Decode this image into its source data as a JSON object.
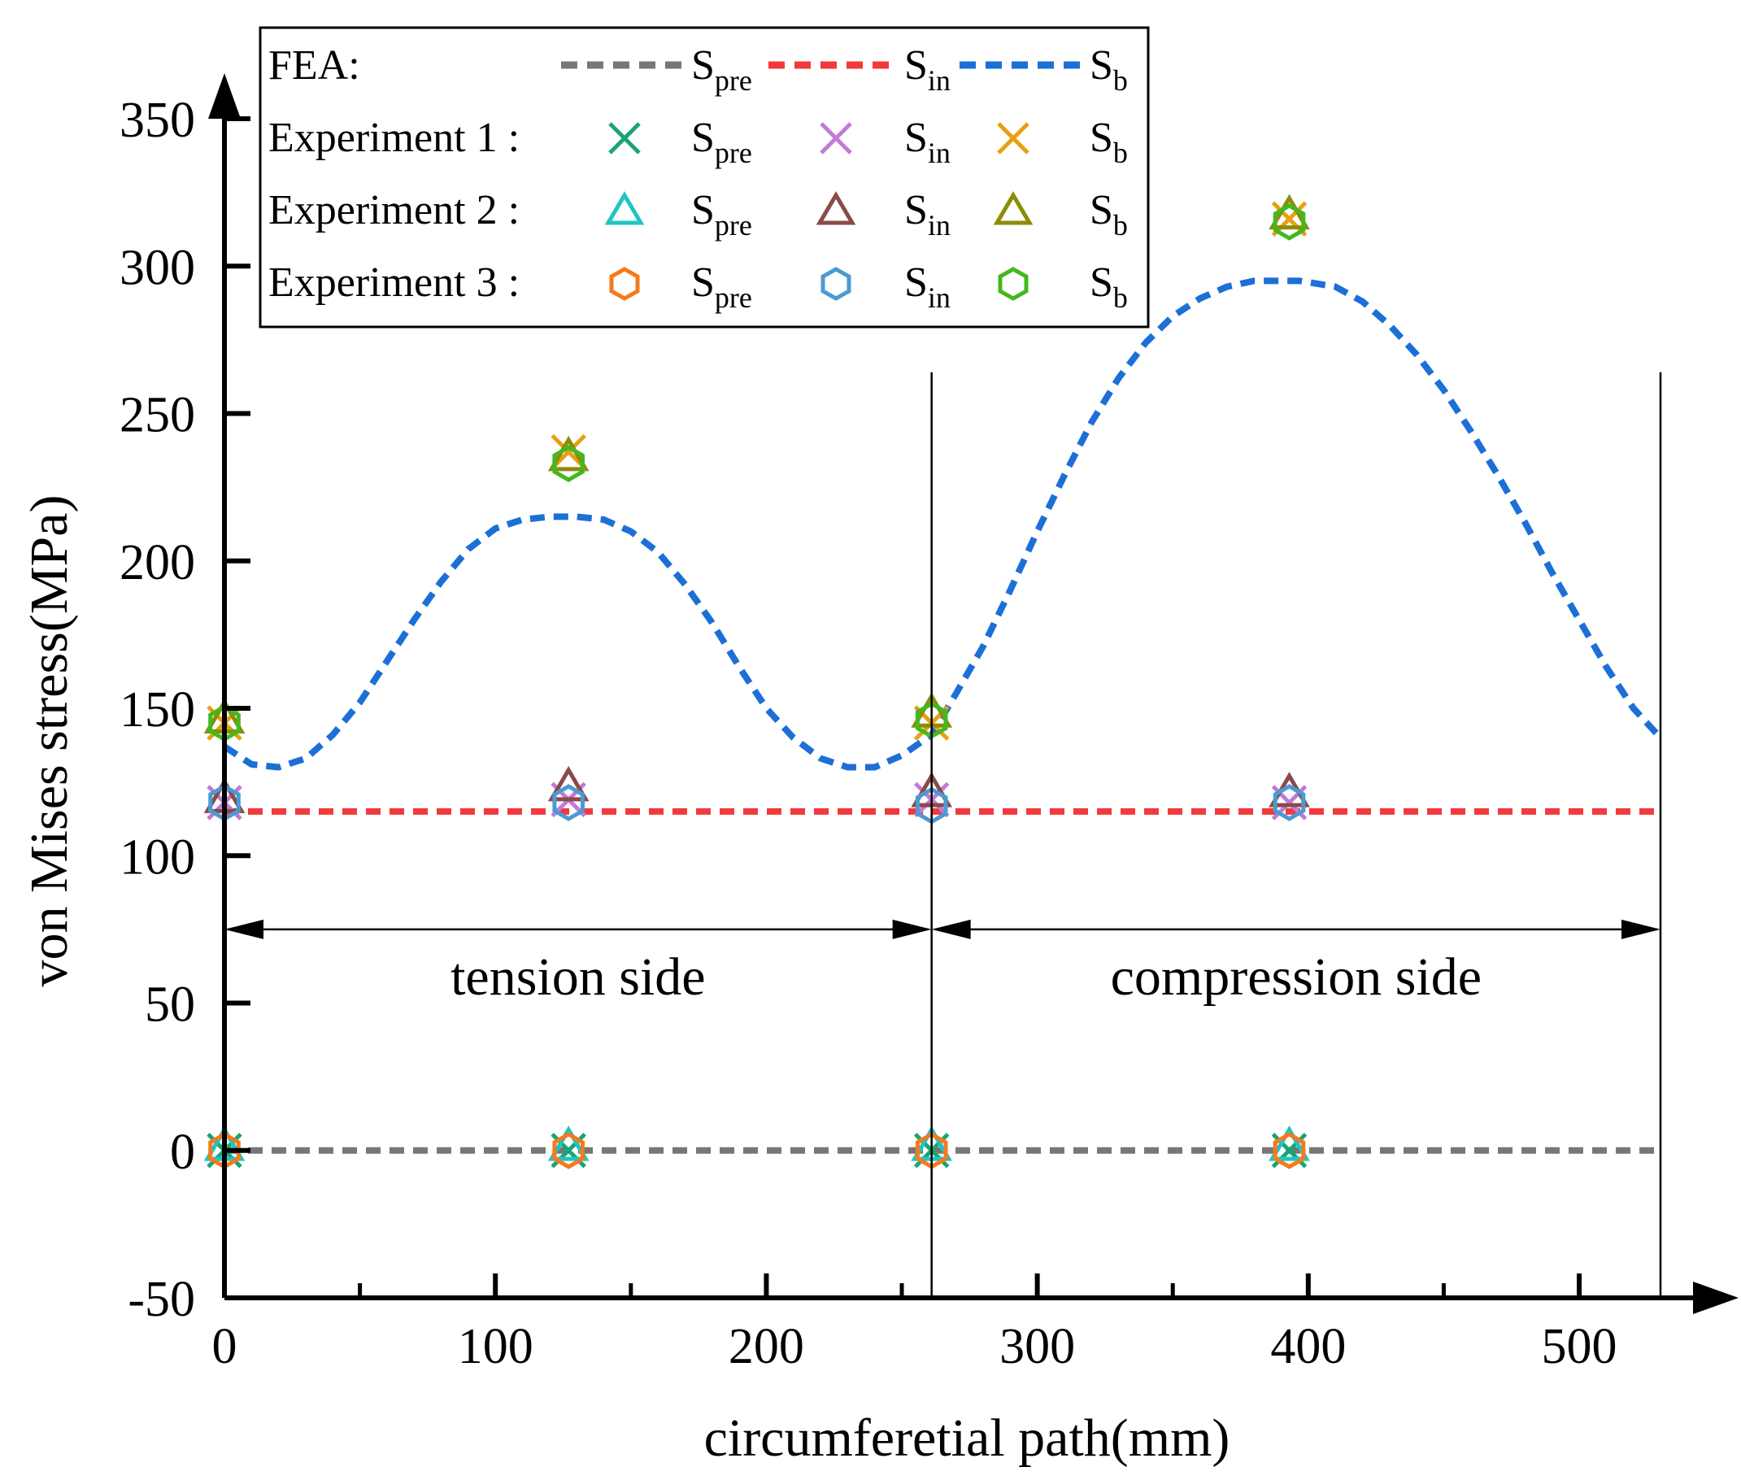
{
  "chart_data": {
    "type": "line",
    "xlabel": "circumferetial path(mm)",
    "ylabel": "von Mises stress(MPa)",
    "xlim": [
      0,
      530
    ],
    "ylim": [
      -50,
      350
    ],
    "xticks": [
      0,
      100,
      200,
      300,
      400,
      500
    ],
    "yticks": [
      -50,
      0,
      50,
      100,
      150,
      200,
      250,
      300,
      350
    ],
    "regions": [
      {
        "label": "tension side",
        "x_start": 0,
        "x_end": 261
      },
      {
        "label": "compression side",
        "x_start": 261,
        "x_end": 530
      }
    ],
    "region_boundaries": [
      261,
      530
    ],
    "region_arrow_y": 75,
    "fea_series": [
      {
        "name": "S_pre",
        "color": "#777777",
        "x": [
          0,
          530
        ],
        "y": [
          0,
          0
        ]
      },
      {
        "name": "S_in",
        "color": "#f2393c",
        "x": [
          0,
          530
        ],
        "y": [
          115,
          115
        ]
      },
      {
        "name": "S_b",
        "color": "#1c6fd6",
        "x": [
          0,
          10,
          20,
          30,
          40,
          50,
          60,
          70,
          80,
          90,
          100,
          110,
          120,
          130,
          140,
          150,
          160,
          170,
          180,
          190,
          200,
          210,
          220,
          230,
          240,
          250,
          261,
          270,
          280,
          290,
          300,
          310,
          320,
          330,
          340,
          350,
          360,
          370,
          380,
          390,
          397,
          410,
          420,
          430,
          440,
          450,
          460,
          470,
          480,
          490,
          500,
          510,
          520,
          530
        ],
        "y": [
          137,
          131,
          130,
          133,
          141,
          152,
          166,
          180,
          193,
          204,
          211,
          214,
          215,
          215,
          214,
          210,
          203,
          192,
          179,
          164,
          150,
          140,
          133,
          130,
          130,
          134,
          141,
          155,
          171,
          190,
          210,
          229,
          247,
          262,
          274,
          283,
          289,
          293,
          295,
          295,
          295,
          293,
          288,
          280,
          270,
          258,
          244,
          229,
          213,
          196,
          180,
          164,
          150,
          140
        ]
      }
    ],
    "experiments": [
      {
        "name": "Experiment 1",
        "marker": "x",
        "points": [
          {
            "quantity": "S_pre",
            "color": "#17a673",
            "x": [
              0,
              127,
              261,
              393
            ],
            "y": [
              0,
              0,
              0,
              0
            ]
          },
          {
            "quantity": "S_in",
            "color": "#c27ad9",
            "x": [
              0,
              127,
              261,
              393
            ],
            "y": [
              118,
              119,
              119,
              118
            ]
          },
          {
            "quantity": "S_b",
            "color": "#e6a012",
            "x": [
              0,
              127,
              261,
              393
            ],
            "y": [
              145,
              237,
              145,
              316
            ]
          }
        ]
      },
      {
        "name": "Experiment 2",
        "marker": "triangle",
        "points": [
          {
            "quantity": "S_pre",
            "color": "#1fc4c4",
            "x": [
              0,
              127,
              261,
              393
            ],
            "y": [
              1,
              1,
              1,
              1
            ]
          },
          {
            "quantity": "S_in",
            "color": "#8a4a4a",
            "x": [
              0,
              127,
              261,
              393
            ],
            "y": [
              119,
              123,
              121,
              121
            ]
          },
          {
            "quantity": "S_b",
            "color": "#8c8c0a",
            "x": [
              0,
              127,
              261,
              393
            ],
            "y": [
              146,
              235,
              148,
              317
            ]
          }
        ]
      },
      {
        "name": "Experiment 3",
        "marker": "hexagon",
        "points": [
          {
            "quantity": "S_pre",
            "color": "#f57a1c",
            "x": [
              0,
              127,
              261,
              393
            ],
            "y": [
              0,
              0,
              0,
              0
            ]
          },
          {
            "quantity": "S_in",
            "color": "#4a9bd1",
            "x": [
              0,
              127,
              261,
              393
            ],
            "y": [
              118,
              118,
              117,
              118
            ]
          },
          {
            "quantity": "S_b",
            "color": "#44b81e",
            "x": [
              0,
              127,
              261,
              393
            ],
            "y": [
              145,
              233,
              146,
              315
            ]
          }
        ]
      }
    ]
  },
  "legend": {
    "fea_label": "FEA:",
    "exp1_label": "Experiment 1 :",
    "exp2_label": "Experiment 2 :",
    "exp3_label": "Experiment 3 :",
    "s_base": "S",
    "sub_pre": "pre",
    "sub_in": "in",
    "sub_b": "b"
  }
}
